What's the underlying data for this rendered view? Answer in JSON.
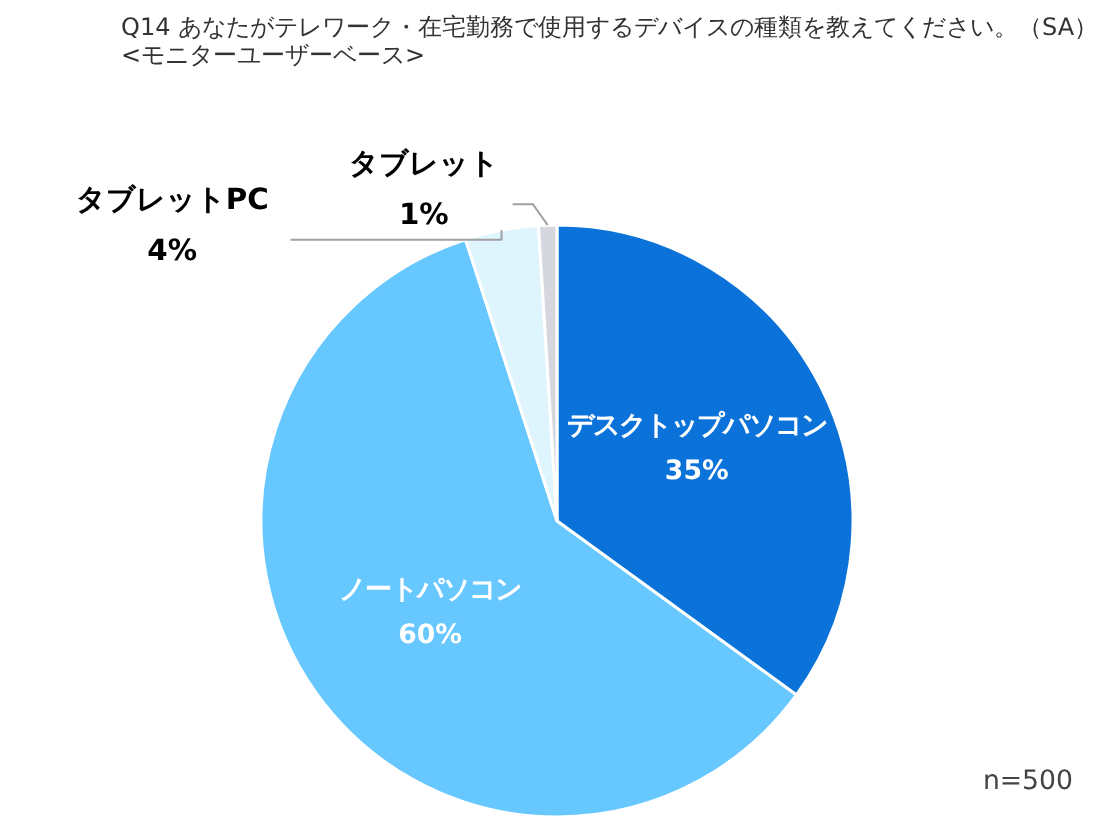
{
  "chart_data": {
    "type": "pie",
    "title": "Q14 あなたがテレワーク・在宅勤務で使用するデバイスの種類を教えてください。（SA）",
    "subtitle": "<モニターユーザーベース>",
    "categories": [
      "デスクトップパソコン",
      "ノートパソコン",
      "タブレットPC",
      "タブレット"
    ],
    "values": [
      35,
      60,
      4,
      1
    ],
    "value_labels": [
      "35%",
      "60%",
      "4%",
      "1%"
    ],
    "colors": [
      "#0a72d8",
      "#66c8ff",
      "#dff5fd",
      "#d6d6de"
    ],
    "annotations": [
      "n=500"
    ]
  }
}
